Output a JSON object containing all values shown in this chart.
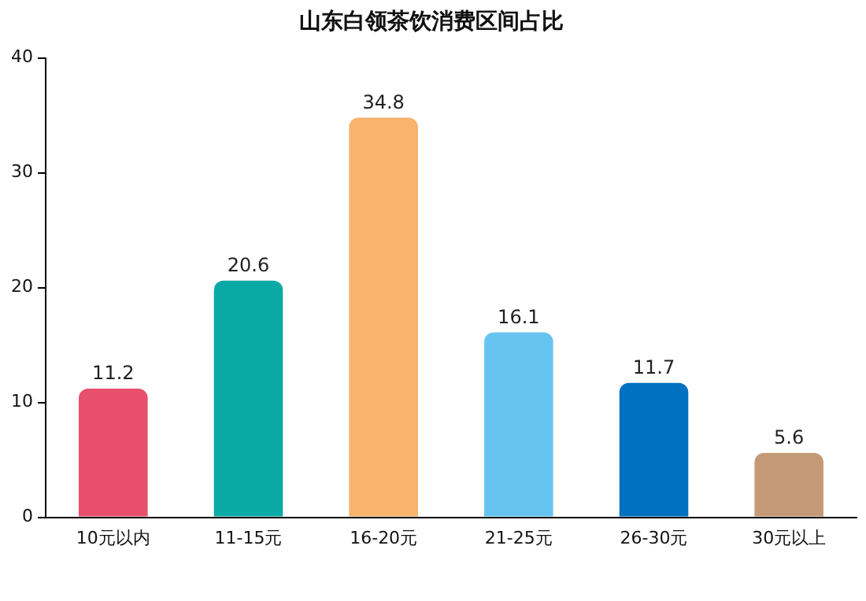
{
  "chart_data": {
    "type": "bar",
    "title": "山东白领茶饮消费区间占比",
    "categories": [
      "10元以内",
      "11-15元",
      "16-20元",
      "21-25元",
      "26-30元",
      "30元以上"
    ],
    "values": [
      11.2,
      20.6,
      34.8,
      16.1,
      11.7,
      5.6
    ],
    "colors": [
      "#e84f6a",
      "#0aa9a6",
      "#f8b36c",
      "#66c5f0",
      "#0071c1",
      "#c49a76"
    ],
    "ylim": [
      0,
      40
    ],
    "yticks": [
      0,
      10,
      20,
      30,
      40
    ],
    "grid": false,
    "legend": false,
    "data_labels": true
  }
}
